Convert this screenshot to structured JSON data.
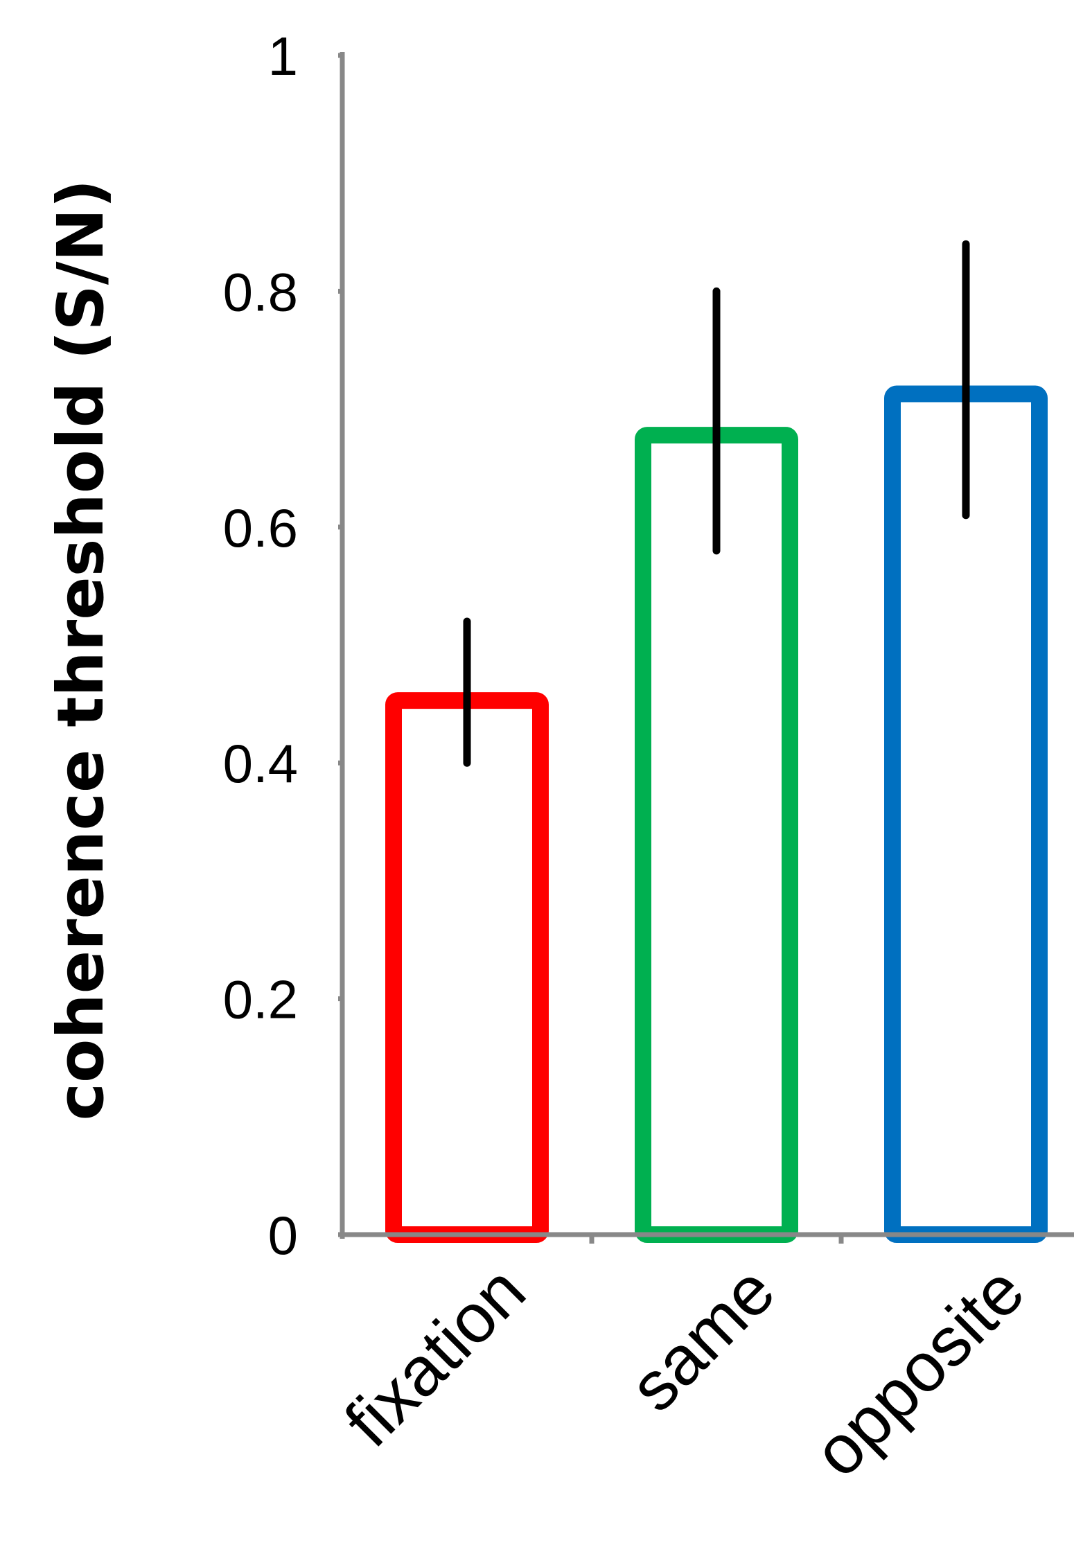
{
  "chart_data": {
    "type": "bar",
    "title": "",
    "xlabel": "",
    "ylabel": "coherence threshold (S/N)",
    "categories": [
      "fixation",
      "same",
      "opposite"
    ],
    "values": [
      0.46,
      0.685,
      0.72
    ],
    "error_bars": [
      {
        "low": 0.4,
        "high": 0.52
      },
      {
        "low": 0.58,
        "high": 0.8
      },
      {
        "low": 0.61,
        "high": 0.84
      }
    ],
    "bar_colors": [
      "#ff0000",
      "#00b050",
      "#0070c0"
    ],
    "bar_fill": "#ffffff",
    "error_bar_color": "#000000",
    "axis_color": "#888888",
    "ylim": [
      0,
      1
    ],
    "yticks": [
      0,
      0.2,
      0.4,
      0.6,
      0.8,
      1
    ],
    "ytick_labels": [
      "0",
      "0.2",
      "0.4",
      "0.6",
      "0.8",
      "1"
    ],
    "grid": false,
    "legend": "none"
  }
}
